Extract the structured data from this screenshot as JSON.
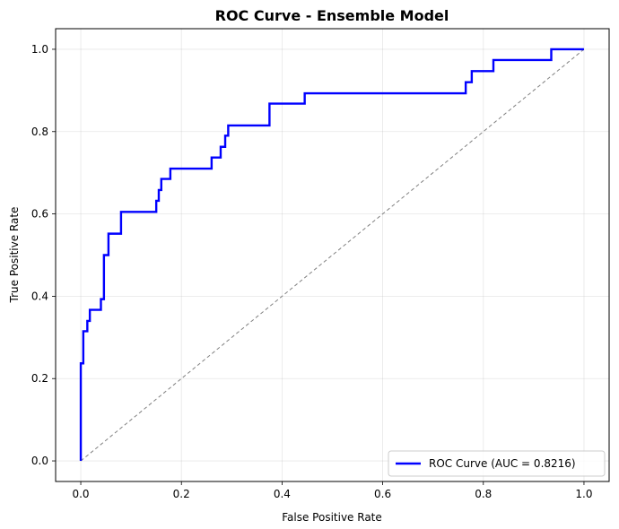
{
  "chart_data": {
    "type": "line",
    "title": "ROC Curve - Ensemble Model",
    "xlabel": "False Positive Rate",
    "ylabel": "True Positive Rate",
    "xlim": [
      -0.05,
      1.05
    ],
    "ylim": [
      -0.05,
      1.05
    ],
    "xticks": [
      "0.0",
      "0.2",
      "0.4",
      "0.6",
      "0.8",
      "1.0"
    ],
    "yticks": [
      "0.0",
      "0.2",
      "0.4",
      "0.6",
      "0.8",
      "1.0"
    ],
    "grid": true,
    "legend_position": "lower-right",
    "series": [
      {
        "name": "ROC Curve (AUC = 0.8216)",
        "color": "#0000ff",
        "style": "solid",
        "x": [
          0.0,
          0.0,
          0.005,
          0.005,
          0.013,
          0.013,
          0.018,
          0.018,
          0.04,
          0.04,
          0.046,
          0.046,
          0.055,
          0.055,
          0.08,
          0.08,
          0.15,
          0.15,
          0.155,
          0.155,
          0.16,
          0.16,
          0.178,
          0.178,
          0.26,
          0.26,
          0.278,
          0.278,
          0.287,
          0.287,
          0.293,
          0.293,
          0.375,
          0.375,
          0.445,
          0.445,
          0.765,
          0.765,
          0.777,
          0.777,
          0.82,
          0.82,
          0.935,
          0.935,
          1.0
        ],
        "y": [
          0.0,
          0.237,
          0.237,
          0.315,
          0.315,
          0.34,
          0.34,
          0.367,
          0.367,
          0.393,
          0.393,
          0.5,
          0.5,
          0.552,
          0.552,
          0.605,
          0.605,
          0.632,
          0.632,
          0.658,
          0.658,
          0.685,
          0.685,
          0.71,
          0.71,
          0.737,
          0.737,
          0.763,
          0.763,
          0.79,
          0.79,
          0.815,
          0.815,
          0.868,
          0.868,
          0.893,
          0.893,
          0.92,
          0.92,
          0.947,
          0.947,
          0.974,
          0.974,
          1.0,
          1.0
        ]
      },
      {
        "name": "",
        "color": "#808080",
        "style": "dashed",
        "x": [
          0.0,
          1.0
        ],
        "y": [
          0.0,
          1.0
        ]
      }
    ]
  }
}
